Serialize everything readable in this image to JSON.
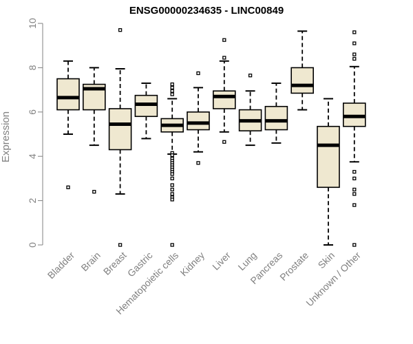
{
  "title": "ENSG00000234635 - LINC00849",
  "chart_data": {
    "type": "boxplot",
    "title": "ENSG00000234635 - LINC00849",
    "xlabel": "",
    "ylabel": "Expression",
    "ylim": [
      0,
      10
    ],
    "yticks": [
      0,
      2,
      4,
      6,
      8,
      10
    ],
    "grid": false,
    "colors": {
      "box_fill": "#efe8d0",
      "stroke": "#000000",
      "axis": "#808080"
    },
    "categories": [
      "Bladder",
      "Brain",
      "Breast",
      "Gastric",
      "Hematopoietic cells",
      "Kidney",
      "Liver",
      "Lung",
      "Pancreas",
      "Prostate",
      "Skin",
      "Unknown / Other"
    ],
    "boxes": [
      {
        "category": "Bladder",
        "whisker_low": 5.0,
        "q1": 6.1,
        "median": 6.65,
        "q3": 7.5,
        "whisker_high": 8.3,
        "outliers": [
          2.6
        ]
      },
      {
        "category": "Brain",
        "whisker_low": 4.5,
        "q1": 6.1,
        "median": 7.05,
        "q3": 7.25,
        "whisker_high": 8.0,
        "outliers": [
          2.4
        ]
      },
      {
        "category": "Breast",
        "whisker_low": 2.3,
        "q1": 4.3,
        "median": 5.45,
        "q3": 6.15,
        "whisker_high": 7.95,
        "outliers": [
          9.7,
          0.0
        ]
      },
      {
        "category": "Gastric",
        "whisker_low": 4.8,
        "q1": 5.8,
        "median": 6.35,
        "q3": 6.75,
        "whisker_high": 7.3,
        "outliers": []
      },
      {
        "category": "Hematopoietic cells",
        "whisker_low": 4.1,
        "q1": 5.1,
        "median": 5.4,
        "q3": 5.7,
        "whisker_high": 6.6,
        "outliers": [
          7.25,
          7.1,
          6.95,
          6.8,
          4.15,
          4.05,
          3.9,
          3.8,
          3.7,
          3.6,
          3.5,
          3.4,
          3.3,
          3.2,
          3.0,
          2.7,
          2.5,
          2.3,
          2.15,
          2.05,
          0.0
        ]
      },
      {
        "category": "Kidney",
        "whisker_low": 4.2,
        "q1": 5.2,
        "median": 5.5,
        "q3": 6.0,
        "whisker_high": 7.1,
        "outliers": [
          7.75,
          3.7
        ]
      },
      {
        "category": "Liver",
        "whisker_low": 5.1,
        "q1": 6.15,
        "median": 6.7,
        "q3": 6.95,
        "whisker_high": 8.3,
        "outliers": [
          9.25,
          8.45,
          4.65
        ]
      },
      {
        "category": "Lung",
        "whisker_low": 4.5,
        "q1": 5.15,
        "median": 5.6,
        "q3": 6.1,
        "whisker_high": 6.95,
        "outliers": [
          7.65
        ]
      },
      {
        "category": "Pancreas",
        "whisker_low": 4.6,
        "q1": 5.2,
        "median": 5.6,
        "q3": 6.25,
        "whisker_high": 7.3,
        "outliers": []
      },
      {
        "category": "Prostate",
        "whisker_low": 6.1,
        "q1": 6.85,
        "median": 7.2,
        "q3": 8.0,
        "whisker_high": 9.65,
        "outliers": []
      },
      {
        "category": "Skin",
        "whisker_low": 0.0,
        "q1": 2.6,
        "median": 4.5,
        "q3": 5.35,
        "whisker_high": 6.6,
        "outliers": []
      },
      {
        "category": "Unknown / Other",
        "whisker_low": 3.75,
        "q1": 5.35,
        "median": 5.8,
        "q3": 6.4,
        "whisker_high": 8.05,
        "outliers": [
          9.6,
          9.1,
          8.6,
          8.4,
          3.3,
          3.0,
          2.5,
          2.3,
          1.8,
          0.0
        ]
      }
    ]
  }
}
